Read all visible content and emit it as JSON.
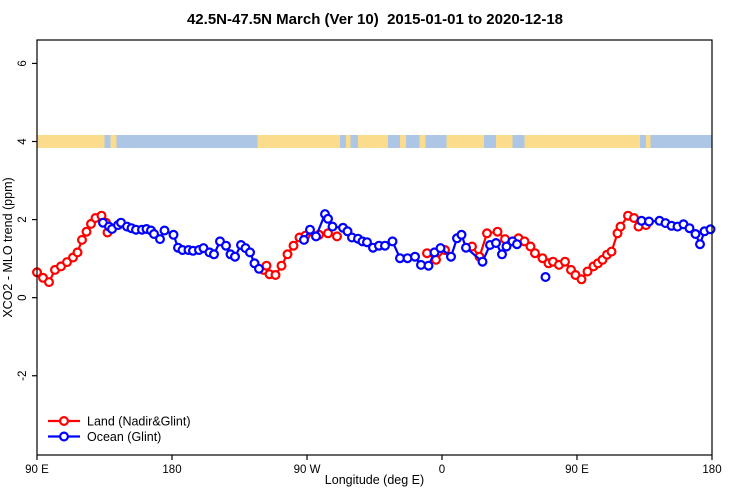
{
  "window": {
    "title": "42.5N-47.5N March (Ver 10)  2015-01-01 to 2020-12-18"
  },
  "chart_data": {
    "type": "line",
    "title": "42.5N-47.5N March (Ver 10)  2015-01-01 to 2020-12-18",
    "xlabel": "Longitude (deg E)",
    "ylabel": "XCO2 - MLO trend (ppm)",
    "x_axis": {
      "range_deg": [
        90,
        540
      ],
      "ticks": [
        {
          "deg": 90,
          "label": "90 E"
        },
        {
          "deg": 180,
          "label": "180"
        },
        {
          "deg": 270,
          "label": "90 W"
        },
        {
          "deg": 360,
          "label": "0"
        },
        {
          "deg": 450,
          "label": "90 E"
        },
        {
          "deg": 540,
          "label": "180"
        }
      ]
    },
    "y_axis": {
      "range": [
        -4.03,
        6.6
      ],
      "ticks": [
        {
          "value": -2,
          "label": "-2"
        },
        {
          "value": 0,
          "label": "0"
        },
        {
          "value": 2,
          "label": "2"
        },
        {
          "value": 4,
          "label": "4"
        },
        {
          "value": 6,
          "label": "6"
        }
      ]
    },
    "map_strip": {
      "y_value": 4,
      "land_color": "#fadc8c",
      "ocean_color": "#aec6e6",
      "segments": [
        {
          "from": 90,
          "to": 135,
          "surface": "land"
        },
        {
          "from": 135,
          "to": 139,
          "surface": "ocean"
        },
        {
          "from": 139,
          "to": 143,
          "surface": "land"
        },
        {
          "from": 143,
          "to": 237,
          "surface": "ocean"
        },
        {
          "from": 237,
          "to": 292,
          "surface": "land"
        },
        {
          "from": 292,
          "to": 296,
          "surface": "ocean"
        },
        {
          "from": 296,
          "to": 299,
          "surface": "land"
        },
        {
          "from": 299,
          "to": 304,
          "surface": "ocean"
        },
        {
          "from": 304,
          "to": 324,
          "surface": "land"
        },
        {
          "from": 324,
          "to": 332,
          "surface": "ocean"
        },
        {
          "from": 332,
          "to": 336,
          "surface": "land"
        },
        {
          "from": 336,
          "to": 345,
          "surface": "ocean"
        },
        {
          "from": 345,
          "to": 349,
          "surface": "land"
        },
        {
          "from": 349,
          "to": 363,
          "surface": "ocean"
        },
        {
          "from": 363,
          "to": 388,
          "surface": "land"
        },
        {
          "from": 388,
          "to": 396,
          "surface": "ocean"
        },
        {
          "from": 396,
          "to": 407,
          "surface": "land"
        },
        {
          "from": 407,
          "to": 415,
          "surface": "ocean"
        },
        {
          "from": 415,
          "to": 492,
          "surface": "land"
        },
        {
          "from": 492,
          "to": 496,
          "surface": "ocean"
        },
        {
          "from": 496,
          "to": 499,
          "surface": "land"
        },
        {
          "from": 499,
          "to": 540,
          "surface": "ocean"
        }
      ]
    },
    "series": [
      {
        "name": "Land (Nadir&Glint)",
        "color": "#ff0000",
        "points": [
          [
            90,
            0.65
          ],
          [
            94,
            0.51
          ],
          [
            98,
            0.4
          ],
          [
            102,
            0.71
          ],
          [
            106,
            0.8
          ],
          [
            110,
            0.91
          ],
          [
            114,
            1.03
          ],
          [
            117,
            1.16
          ],
          [
            120,
            1.48
          ],
          [
            123,
            1.69
          ],
          [
            126,
            1.89
          ],
          [
            129,
            2.04
          ],
          [
            133,
            2.1
          ],
          [
            136,
            1.92
          ],
          [
            137,
            1.67
          ],
          [
            241,
            0.71
          ],
          [
            243,
            0.82
          ],
          [
            245,
            0.6
          ],
          [
            249,
            0.58
          ],
          [
            253,
            0.82
          ],
          [
            257,
            1.11
          ],
          [
            261,
            1.33
          ],
          [
            265,
            1.54
          ],
          [
            269,
            1.59
          ],
          [
            278,
            1.61
          ],
          [
            284,
            1.65
          ],
          [
            290,
            1.57
          ],
          [
            350,
            1.14
          ],
          [
            356,
            0.97
          ],
          [
            362,
            1.22
          ],
          [
            380,
            1.31
          ],
          [
            385,
            1.05
          ],
          [
            390,
            1.65
          ],
          [
            397,
            1.69
          ],
          [
            402,
            1.5
          ],
          [
            411,
            1.52
          ],
          [
            415,
            1.44
          ],
          [
            419,
            1.31
          ],
          [
            422,
            1.14
          ],
          [
            427,
            1.01
          ],
          [
            431,
            0.88
          ],
          [
            434,
            0.92
          ],
          [
            438,
            0.84
          ],
          [
            442,
            0.92
          ],
          [
            446,
            0.71
          ],
          [
            449,
            0.58
          ],
          [
            453,
            0.47
          ],
          [
            457,
            0.67
          ],
          [
            461,
            0.8
          ],
          [
            464,
            0.88
          ],
          [
            467,
            0.97
          ],
          [
            470,
            1.1
          ],
          [
            473,
            1.18
          ],
          [
            477,
            1.65
          ],
          [
            479,
            1.82
          ],
          [
            484,
            2.1
          ],
          [
            488,
            2.04
          ],
          [
            491,
            1.82
          ],
          [
            496,
            1.86
          ]
        ]
      },
      {
        "name": "Ocean (Glint)",
        "color": "#0000ff",
        "points": [
          [
            134,
            1.92
          ],
          [
            138,
            1.82
          ],
          [
            140,
            1.76
          ],
          [
            144,
            1.86
          ],
          [
            146,
            1.92
          ],
          [
            150,
            1.82
          ],
          [
            153,
            1.78
          ],
          [
            156,
            1.74
          ],
          [
            160,
            1.74
          ],
          [
            163,
            1.76
          ],
          [
            166,
            1.72
          ],
          [
            168,
            1.63
          ],
          [
            172,
            1.5
          ],
          [
            175,
            1.72
          ],
          [
            181,
            1.61
          ],
          [
            184,
            1.28
          ],
          [
            187,
            1.22
          ],
          [
            191,
            1.22
          ],
          [
            194,
            1.2
          ],
          [
            198,
            1.22
          ],
          [
            201,
            1.27
          ],
          [
            205,
            1.16
          ],
          [
            208,
            1.11
          ],
          [
            212,
            1.44
          ],
          [
            216,
            1.33
          ],
          [
            219,
            1.11
          ],
          [
            222,
            1.05
          ],
          [
            226,
            1.35
          ],
          [
            229,
            1.27
          ],
          [
            232,
            1.16
          ],
          [
            235,
            0.88
          ],
          [
            238,
            0.74
          ],
          [
            268,
            1.48
          ],
          [
            272,
            1.74
          ],
          [
            276,
            1.57
          ],
          [
            282,
            2.14
          ],
          [
            284,
            2.02
          ],
          [
            287,
            1.82
          ],
          [
            294,
            1.79
          ],
          [
            297,
            1.7
          ],
          [
            300,
            1.54
          ],
          [
            304,
            1.51
          ],
          [
            307,
            1.44
          ],
          [
            310,
            1.42
          ],
          [
            314,
            1.28
          ],
          [
            318,
            1.33
          ],
          [
            322,
            1.33
          ],
          [
            327,
            1.44
          ],
          [
            332,
            1.01
          ],
          [
            337,
            1.01
          ],
          [
            342,
            1.05
          ],
          [
            346,
            0.84
          ],
          [
            351,
            0.82
          ],
          [
            355,
            1.16
          ],
          [
            359,
            1.27
          ],
          [
            366,
            1.05
          ],
          [
            370,
            1.52
          ],
          [
            373,
            1.61
          ],
          [
            376,
            1.28
          ],
          [
            387,
            0.92
          ],
          [
            392,
            1.35
          ],
          [
            396,
            1.4
          ],
          [
            400,
            1.11
          ],
          [
            403,
            1.31
          ],
          [
            407,
            1.44
          ],
          [
            410,
            1.37
          ],
          [
            429,
            0.53
          ],
          [
            493,
            1.97
          ],
          [
            498,
            1.95
          ],
          [
            505,
            1.97
          ],
          [
            509,
            1.91
          ],
          [
            513,
            1.84
          ],
          [
            517,
            1.82
          ],
          [
            521,
            1.88
          ],
          [
            525,
            1.78
          ],
          [
            529,
            1.63
          ],
          [
            532,
            1.37
          ],
          [
            535,
            1.7
          ],
          [
            539,
            1.75
          ]
        ]
      }
    ],
    "legend": {
      "position": "bottom-left",
      "items": [
        {
          "label": "Land (Nadir&Glint)",
          "color": "#ff0000"
        },
        {
          "label": "Ocean (Glint)",
          "color": "#0000ff"
        }
      ]
    },
    "style": {
      "marker": "open-circle",
      "background": "#ffffff",
      "frame_color": "#000000",
      "grid": false
    }
  }
}
